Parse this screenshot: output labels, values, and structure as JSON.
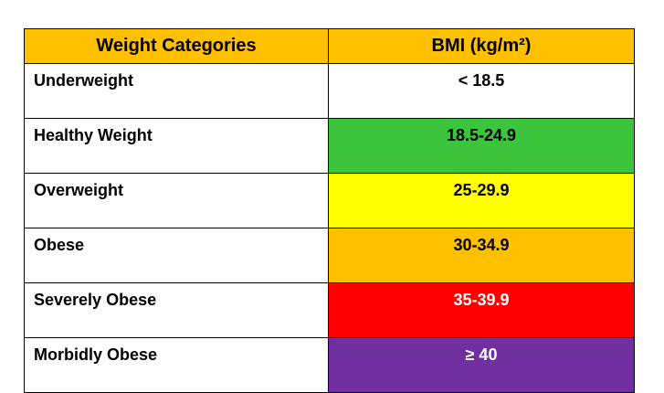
{
  "table": {
    "header": {
      "category": "Weight Categories",
      "bmi": "BMI (kg/m²)",
      "bg": "#FFC000"
    },
    "rows": [
      {
        "category": "Underweight",
        "bmi": "< 18.5",
        "bg": "#FFFFFF",
        "text": "#000000"
      },
      {
        "category": "Healthy Weight",
        "bmi": "18.5-24.9",
        "bg": "#3CC43C",
        "text": "#000000"
      },
      {
        "category": "Overweight",
        "bmi": "25-29.9",
        "bg": "#FFFF00",
        "text": "#000000"
      },
      {
        "category": "Obese",
        "bmi": "30-34.9",
        "bg": "#FFC000",
        "text": "#000000"
      },
      {
        "category": "Severely Obese",
        "bmi": "35-39.9",
        "bg": "#FF0000",
        "text": "#FFFFFF"
      },
      {
        "category": "Morbidly Obese",
        "bmi": "≥ 40",
        "bg": "#7030A0",
        "text": "#FFFFFF"
      }
    ]
  }
}
